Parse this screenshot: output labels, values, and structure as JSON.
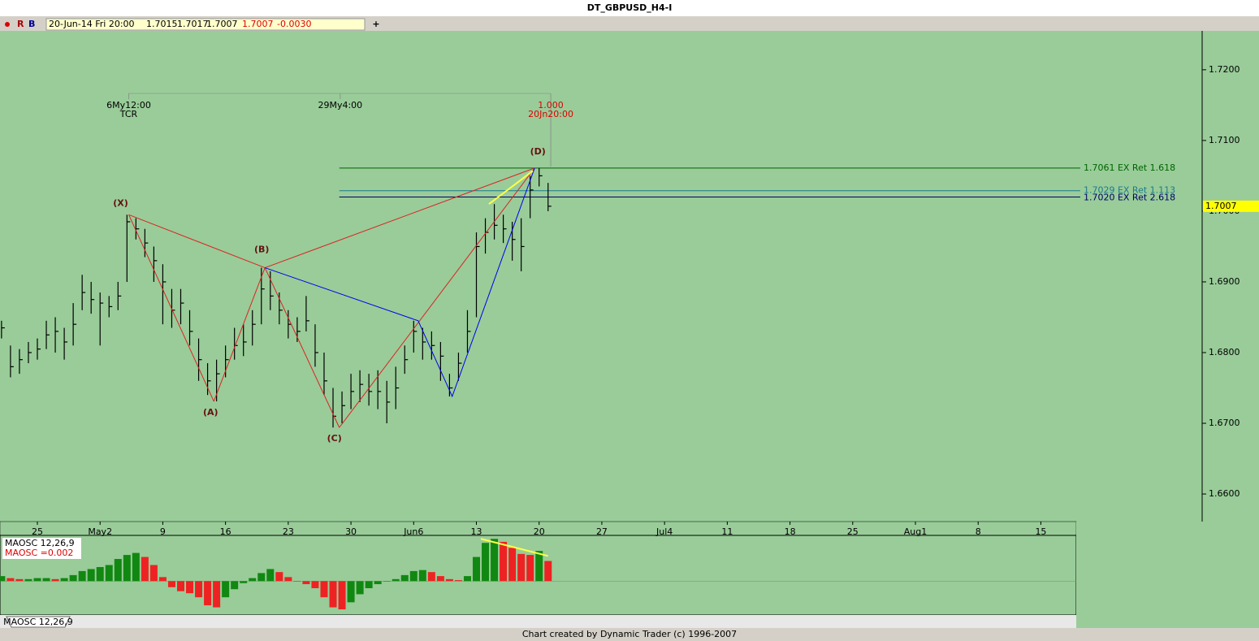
{
  "window": {
    "title": "DT_GBPUSD_H4-I",
    "toolbar": {
      "flags": [
        "R",
        "B"
      ],
      "date": "20-Jun-14 Fri 20:00",
      "open": "1.7015",
      "high": "1.7017",
      "low": "1.7007",
      "close": "1.7007",
      "change": "-0.0030",
      "add": "+"
    },
    "tab": "MAOSC 12,26,9",
    "footer": "Chart created by Dynamic Trader  (c) 1996-2007"
  },
  "chart_data": [
    {
      "type": "ohlc",
      "xlim": [
        -4.17,
        130
      ],
      "ylim": [
        1.6561,
        1.7255
      ],
      "yticks": [
        {
          "value": 1.66,
          "label": "1.6600"
        },
        {
          "value": 1.67,
          "label": "1.6700"
        },
        {
          "value": 1.68,
          "label": "1.6800"
        },
        {
          "value": 1.69,
          "label": "1.6900"
        },
        {
          "value": 1.7,
          "label": "1.7000"
        },
        {
          "value": 1.71,
          "label": "1.7100"
        },
        {
          "value": 1.72,
          "label": "1.7200"
        }
      ],
      "xticks": [
        {
          "value": 0,
          "label": "25"
        },
        {
          "value": 7,
          "label": "May2"
        },
        {
          "value": 14,
          "label": "9"
        },
        {
          "value": 21,
          "label": "16"
        },
        {
          "value": 28,
          "label": "23"
        },
        {
          "value": 35,
          "label": "30"
        },
        {
          "value": 42,
          "label": "Jun6"
        },
        {
          "value": 49,
          "label": "13"
        },
        {
          "value": 56,
          "label": "20"
        },
        {
          "value": 63,
          "label": "27"
        },
        {
          "value": 70,
          "label": "Jul4"
        },
        {
          "value": 77,
          "label": "11"
        },
        {
          "value": 84,
          "label": "18"
        },
        {
          "value": 91,
          "label": "25"
        },
        {
          "value": 98,
          "label": "Aug1"
        },
        {
          "value": 105,
          "label": "8"
        },
        {
          "value": 112,
          "label": "15"
        }
      ],
      "x": [
        -4,
        -3,
        -2,
        -1,
        0,
        1,
        2,
        3,
        4,
        5,
        6,
        7,
        8,
        9,
        10,
        11,
        12,
        13,
        14,
        15,
        16,
        17,
        18,
        19,
        20,
        21,
        22,
        23,
        24,
        25,
        26,
        27,
        28,
        29,
        30,
        31,
        32,
        33,
        34,
        35,
        36,
        37,
        38,
        39,
        40,
        41,
        42,
        43,
        44,
        45,
        46,
        47,
        48,
        49,
        50,
        51,
        52,
        53,
        54,
        55,
        56,
        57
      ],
      "high": [
        1.6845,
        1.681,
        1.6805,
        1.6815,
        1.682,
        1.6845,
        1.685,
        1.6835,
        1.687,
        1.691,
        1.69,
        1.6885,
        1.688,
        1.69,
        1.6995,
        1.699,
        1.6975,
        1.695,
        1.6925,
        1.689,
        1.689,
        1.686,
        1.682,
        1.6785,
        1.679,
        1.681,
        1.6835,
        1.684,
        1.686,
        1.692,
        1.6915,
        1.6885,
        1.686,
        1.685,
        1.688,
        1.684,
        1.68,
        1.675,
        1.6745,
        1.677,
        1.6775,
        1.677,
        1.6775,
        1.676,
        1.678,
        1.681,
        1.6845,
        1.6835,
        1.683,
        1.6815,
        1.677,
        1.68,
        1.686,
        1.697,
        1.699,
        1.701,
        1.6995,
        1.6985,
        1.699,
        1.705,
        1.7061,
        1.704
      ],
      "low": [
        1.682,
        1.6765,
        1.677,
        1.6785,
        1.679,
        1.6805,
        1.68,
        1.679,
        1.681,
        1.686,
        1.6855,
        1.681,
        1.685,
        1.686,
        1.69,
        1.696,
        1.6935,
        1.69,
        1.684,
        1.6835,
        1.684,
        1.681,
        1.676,
        1.674,
        1.6731,
        1.6765,
        1.679,
        1.6795,
        1.681,
        1.684,
        1.686,
        1.684,
        1.682,
        1.6815,
        1.683,
        1.678,
        1.674,
        1.6694,
        1.67,
        1.672,
        1.673,
        1.6725,
        1.672,
        1.67,
        1.672,
        1.677,
        1.68,
        1.679,
        1.679,
        1.676,
        1.6738,
        1.676,
        1.68,
        1.685,
        1.694,
        1.696,
        1.6955,
        1.693,
        1.6915,
        1.699,
        1.7035,
        1.7
      ],
      "close": [
        1.6835,
        1.678,
        1.679,
        1.68,
        1.6805,
        1.6825,
        1.683,
        1.6815,
        1.684,
        1.6885,
        1.6875,
        1.687,
        1.6865,
        1.688,
        1.6985,
        1.6975,
        1.6955,
        1.693,
        1.69,
        1.686,
        1.687,
        1.683,
        1.679,
        1.676,
        1.677,
        1.679,
        1.681,
        1.6815,
        1.684,
        1.689,
        1.688,
        1.686,
        1.684,
        1.683,
        1.6845,
        1.68,
        1.676,
        1.671,
        1.6725,
        1.6745,
        1.6755,
        1.6745,
        1.6745,
        1.673,
        1.675,
        1.679,
        1.683,
        1.6815,
        1.681,
        1.6795,
        1.675,
        1.6785,
        1.683,
        1.695,
        1.697,
        1.698,
        1.6975,
        1.696,
        1.695,
        1.703,
        1.705,
        1.7007
      ],
      "current": 1.7007,
      "levels": [
        {
          "value": 1.7061,
          "label": "1.7061 EX Ret 1.618",
          "color": "#006400"
        },
        {
          "value": 1.7029,
          "label": "1.7029 EX Ret 1.113",
          "color": "#1e7b8c"
        },
        {
          "value": 1.702,
          "label": "1.7020 EX Ret 2.618",
          "color": "#000066"
        }
      ],
      "levels_x": [
        33.7,
        116.4
      ],
      "time_markers": [
        {
          "x": 10.2,
          "labels": [
            "6My12:00",
            "TCR"
          ],
          "color": "#000000"
        },
        {
          "x": 33.8,
          "labels": [
            "29My4:00"
          ],
          "color": "#000000"
        },
        {
          "x": 57.3,
          "labels": [
            "1.000",
            "20Jn20:00"
          ],
          "color": "#dd0000"
        }
      ],
      "pattern": [
        {
          "label": "(X)",
          "x": 10.2,
          "y": 1.6995
        },
        {
          "label": "(A)",
          "x": 19.7,
          "y": 1.6731
        },
        {
          "label": "(B)",
          "x": 25.4,
          "y": 1.692
        },
        {
          "label": "(C)",
          "x": 33.7,
          "y": 1.6694
        },
        {
          "label": "(D)",
          "x": 55.5,
          "y": 1.7061
        }
      ],
      "pattern_color": "#dd2222",
      "blue_path": {
        "x": [
          25.4,
          42.5,
          46.3,
          55.5
        ],
        "y": [
          1.692,
          1.6845,
          1.6738,
          1.7061
        ],
        "color": "#0000ee"
      },
      "divergence": {
        "x": [
          50.4,
          55.3
        ],
        "y": [
          1.701,
          1.7057
        ],
        "color": "#ffff44"
      }
    },
    {
      "type": "histogram-oscillator",
      "name": "MAOSC 12,26,9",
      "readout": "MAOSC =0.002",
      "ylim": [
        -0.0032,
        0.0043
      ],
      "x": [
        -4,
        -3,
        -2,
        -1,
        0,
        1,
        2,
        3,
        4,
        5,
        6,
        7,
        8,
        9,
        10,
        11,
        12,
        13,
        14,
        15,
        16,
        17,
        18,
        19,
        20,
        21,
        22,
        23,
        24,
        25,
        26,
        27,
        28,
        29,
        30,
        31,
        32,
        33,
        34,
        35,
        36,
        37,
        38,
        39,
        40,
        41,
        42,
        43,
        44,
        45,
        46,
        47,
        48,
        49,
        50,
        51,
        52,
        53,
        54,
        55,
        56,
        57
      ],
      "values": [
        0.0005,
        0.0003,
        0.0002,
        0.0002,
        0.0003,
        0.0003,
        0.0002,
        0.0003,
        0.0006,
        0.001,
        0.0012,
        0.0014,
        0.0016,
        0.0022,
        0.0026,
        0.0028,
        0.0024,
        0.0016,
        0.0004,
        -0.0006,
        -0.001,
        -0.0012,
        -0.0016,
        -0.0024,
        -0.0026,
        -0.0016,
        -0.0008,
        -0.0002,
        0.0003,
        0.0008,
        0.0012,
        0.0009,
        0.0004,
        0,
        -0.0003,
        -0.0007,
        -0.0016,
        -0.0026,
        -0.0028,
        -0.0021,
        -0.0013,
        -0.0007,
        -0.0003,
        0,
        0.0002,
        0.0006,
        0.001,
        0.0011,
        0.0009,
        0.0005,
        0.0002,
        0.0001,
        0.0005,
        0.0024,
        0.0038,
        0.0042,
        0.0039,
        0.0033,
        0.0027,
        0.0026,
        0.003,
        0.002
      ],
      "rising_color": "#118811",
      "falling_color": "#ee2222",
      "divergence": {
        "x": [
          49.5,
          57
        ],
        "y": [
          0.0042,
          0.0025
        ],
        "color": "#ffff44"
      }
    }
  ]
}
